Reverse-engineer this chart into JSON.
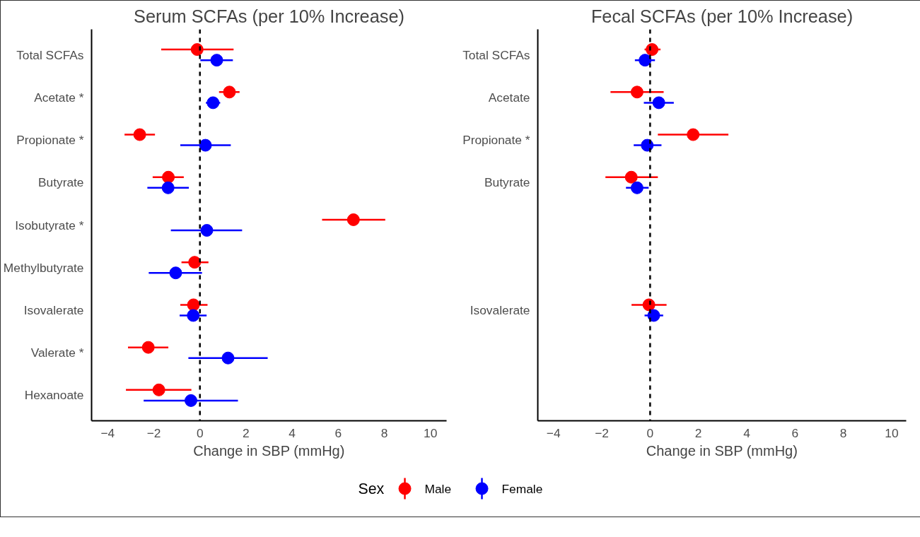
{
  "chart_data": [
    {
      "type": "scatter",
      "orientation": "horizontal",
      "title": "Serum SCFAs (per 10% Increase)",
      "xlabel": "Change in SBP (mmHg)",
      "categories": [
        "Total SCFAs",
        "Acetate *",
        "Propionate *",
        "Butyrate",
        "Isobutyrate *",
        "Methylbutyrate",
        "Isovalerate",
        "Valerate *",
        "Hexanoate"
      ],
      "series": [
        {
          "name": "Male",
          "color": "#ff0000",
          "values": [
            -0.12,
            1.28,
            -2.61,
            -1.37,
            6.66,
            -0.23,
            -0.28,
            -2.24,
            -1.78
          ],
          "errors": [
            [
              -1.68,
              1.46
            ],
            [
              0.83,
              1.72
            ],
            [
              -3.27,
              -1.95
            ],
            [
              -2.05,
              -0.7
            ],
            [
              5.3,
              8.04
            ],
            [
              -0.8,
              0.37
            ],
            [
              -0.85,
              0.33
            ],
            [
              -3.12,
              -1.37
            ],
            [
              -3.21,
              -0.37
            ]
          ]
        },
        {
          "name": "Female",
          "color": "#0000ff",
          "values": [
            0.73,
            0.57,
            0.24,
            -1.38,
            0.3,
            -1.05,
            -0.29,
            1.22,
            -0.39
          ],
          "errors": [
            [
              0.02,
              1.43
            ],
            [
              0.26,
              0.88
            ],
            [
              -0.85,
              1.34
            ],
            [
              -2.28,
              -0.48
            ],
            [
              -1.26,
              1.83
            ],
            [
              -2.22,
              0.09
            ],
            [
              -0.88,
              0.29
            ],
            [
              -0.5,
              2.94
            ],
            [
              -2.44,
              1.65
            ]
          ]
        }
      ],
      "xlim": [
        -4.7,
        10.7
      ],
      "xticks": [
        -4,
        -2,
        0,
        2,
        4,
        6,
        8,
        10
      ],
      "ref_lines": [
        {
          "axis": "x",
          "value": 0,
          "line_style": "dashed",
          "color": "#000000"
        }
      ],
      "grid": false,
      "marker": "circle",
      "legend": "bottom",
      "legend_title": "Sex"
    },
    {
      "type": "scatter",
      "orientation": "horizontal",
      "title": "Fecal SCFAs (per 10% Increase)",
      "xlabel": "Change in SBP (mmHg)",
      "categories": [
        "Total SCFAs",
        "Acetate",
        "Propionate *",
        "Butyrate",
        null,
        null,
        "Isovalerate",
        null,
        null
      ],
      "series": [
        {
          "color": "#ff0000",
          "values": [
            0.08,
            -0.54,
            1.78,
            -0.78,
            null,
            null,
            -0.05,
            null,
            null
          ],
          "errors": [
            [
              -0.23,
              0.43
            ],
            [
              -1.64,
              0.56
            ],
            [
              0.32,
              3.24
            ],
            [
              -1.85,
              0.32
            ],
            null,
            null,
            [
              -0.77,
              0.68
            ],
            null,
            null
          ]
        },
        {
          "color": "#0000ff",
          "values": [
            -0.21,
            0.36,
            -0.12,
            -0.54,
            null,
            null,
            0.15,
            null,
            null
          ],
          "errors": [
            [
              -0.63,
              0.2
            ],
            [
              -0.26,
              0.98
            ],
            [
              -0.68,
              0.47
            ],
            [
              -1.0,
              -0.06
            ],
            null,
            null,
            [
              -0.23,
              0.54
            ],
            null,
            null
          ]
        }
      ],
      "xlim": [
        -4.65,
        10.6
      ],
      "xticks": [
        -4,
        -2,
        0,
        2,
        4,
        6,
        8,
        10
      ],
      "ref_lines": [
        {
          "axis": "x",
          "value": 0,
          "line_style": "dashed",
          "color": "#000000"
        }
      ],
      "grid": false,
      "marker": "circle"
    }
  ]
}
